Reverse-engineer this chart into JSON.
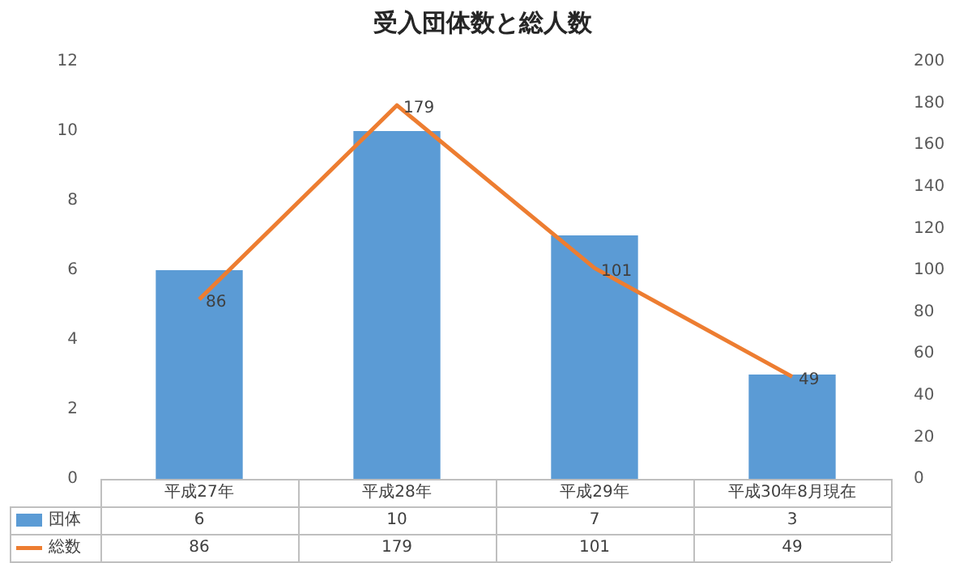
{
  "chart_data": {
    "type": "bar",
    "title": "受入団体数と総人数",
    "categories": [
      "平成27年",
      "平成28年",
      "平成29年",
      "平成30年8月現在"
    ],
    "series": [
      {
        "name": "団体",
        "color": "#5b9bd5",
        "values": [
          6,
          10,
          7,
          3
        ]
      },
      {
        "name": "総数",
        "type": "line",
        "axis": "y2",
        "color": "#ed7d31",
        "values": [
          86,
          179,
          101,
          49
        ]
      }
    ],
    "annotations": [
      "86",
      "179",
      "101",
      "49"
    ],
    "ylim": [
      0,
      12
    ],
    "yticks": [
      0,
      2,
      4,
      6,
      8,
      10,
      12
    ],
    "y2lim": [
      0,
      200
    ],
    "y2ticks": [
      0,
      20,
      40,
      60,
      80,
      100,
      120,
      140,
      160,
      180,
      200
    ],
    "grid": false,
    "legend": "bottom",
    "data_labels": true,
    "marker": "none",
    "line_style": "solid"
  }
}
